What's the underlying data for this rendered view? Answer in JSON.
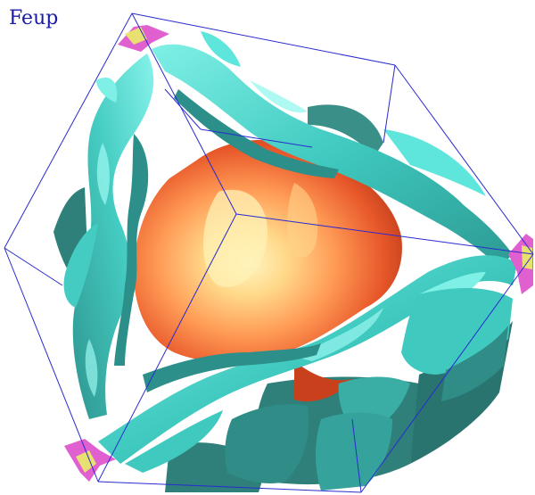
{
  "viewer": {
    "label": "Feup"
  },
  "colors": {
    "background": "#ffffff",
    "label": "#1a1aa6",
    "cell_edges": "#2a2ad0",
    "sheet_light": "#5fe6dc",
    "sheet_base": "#3fc9bf",
    "sheet_dark": "#2f8c86",
    "core_highlight": "#fff3b0",
    "core_mid": "#ff9a55",
    "core_base": "#e8582a",
    "core_shadow": "#b83a1a",
    "pocket_magenta": "#e060d0",
    "pocket_yellow": "#e8e070"
  },
  "icons": [
    "brillouin-zone-wireframe",
    "fermi-sheet-cyan",
    "fermi-sheet-orange",
    "corner-pocket"
  ]
}
